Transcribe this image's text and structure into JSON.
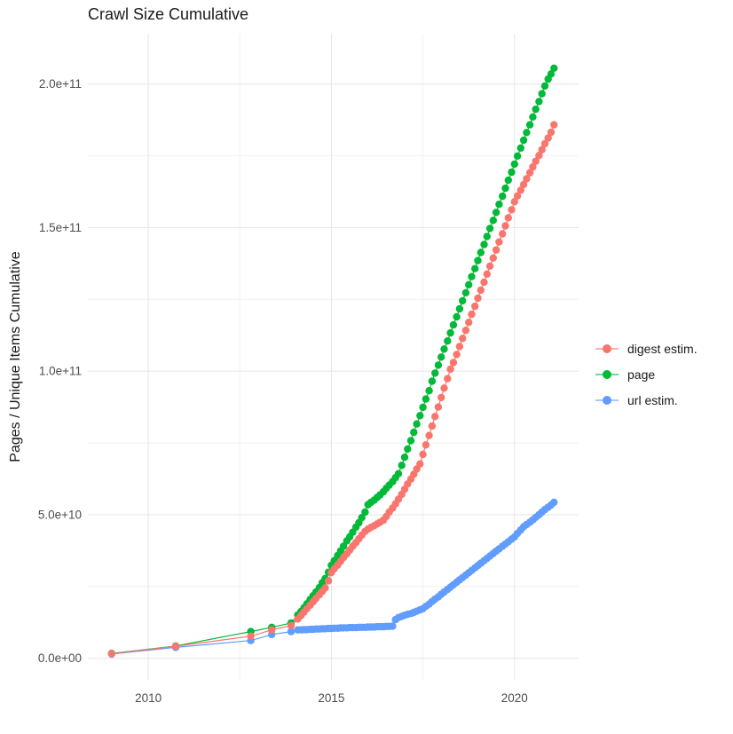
{
  "chart_data": {
    "type": "line",
    "title": "Crawl Size Cumulative",
    "xlabel": "",
    "ylabel": "Pages / Unique Items Cumulative",
    "legend_position": "right",
    "grid": true,
    "value_unit_e9": "values are in billions (1e9)",
    "xlim": [
      2008.35,
      2021.75
    ],
    "ylim_e9": [
      -7.5,
      217.5
    ],
    "x_ticks": [
      {
        "v": 2010,
        "label": "2010"
      },
      {
        "v": 2015,
        "label": "2015"
      },
      {
        "v": 2020,
        "label": "2020"
      }
    ],
    "x_minor_ticks": [
      2012.5,
      2017.5
    ],
    "y_ticks": [
      {
        "v": 0,
        "label": "0.0e+00"
      },
      {
        "v": 50,
        "label": "5.0e+10"
      },
      {
        "v": 100,
        "label": "1.0e+11"
      },
      {
        "v": 150,
        "label": "1.5e+11"
      },
      {
        "v": 200,
        "label": "2.0e+11"
      }
    ],
    "y_minor_ticks": [
      25,
      75,
      125,
      175
    ],
    "colors": {
      "grid_major": "#e4e4e4",
      "grid_minor": "#f1f1f1",
      "tick_text": "#4d4d4d",
      "title_text": "#1a1a1a"
    },
    "draw_order": [
      "url estim.",
      "page",
      "digest estim."
    ],
    "series": [
      {
        "name": "digest estim.",
        "color": "#F8766D",
        "points_e9": [
          [
            2009.0,
            1.6
          ],
          [
            2010.75,
            4.2
          ],
          [
            2012.8,
            7.7
          ],
          [
            2013.37,
            9.9
          ],
          [
            2013.9,
            11.4
          ],
          [
            2014.08,
            13.7
          ],
          [
            2014.17,
            14.9
          ],
          [
            2014.25,
            16.1
          ],
          [
            2014.33,
            17.3
          ],
          [
            2014.42,
            18.5
          ],
          [
            2014.5,
            19.7
          ],
          [
            2014.58,
            20.9
          ],
          [
            2014.67,
            22.1
          ],
          [
            2014.75,
            23.3
          ],
          [
            2014.83,
            24.5
          ],
          [
            2014.92,
            27.0
          ],
          [
            2015.0,
            29.9
          ],
          [
            2015.08,
            31.2
          ],
          [
            2015.17,
            32.5
          ],
          [
            2015.25,
            33.8
          ],
          [
            2015.33,
            35.1
          ],
          [
            2015.42,
            36.4
          ],
          [
            2015.5,
            37.7
          ],
          [
            2015.58,
            39.0
          ],
          [
            2015.67,
            40.3
          ],
          [
            2015.75,
            41.6
          ],
          [
            2015.83,
            42.9
          ],
          [
            2015.92,
            44.2
          ],
          [
            2016.0,
            45.0
          ],
          [
            2016.08,
            45.6
          ],
          [
            2016.17,
            46.2
          ],
          [
            2016.25,
            46.8
          ],
          [
            2016.33,
            47.4
          ],
          [
            2016.42,
            48.1
          ],
          [
            2016.5,
            49.4
          ],
          [
            2016.58,
            50.9
          ],
          [
            2016.67,
            52.3
          ],
          [
            2016.75,
            53.8
          ],
          [
            2016.83,
            55.4
          ],
          [
            2016.92,
            57.1
          ],
          [
            2017.0,
            58.9
          ],
          [
            2017.08,
            60.7
          ],
          [
            2017.17,
            62.4
          ],
          [
            2017.25,
            64.1
          ],
          [
            2017.33,
            65.9
          ],
          [
            2017.42,
            67.7
          ],
          [
            2017.5,
            71.0
          ],
          [
            2017.58,
            74.3
          ],
          [
            2017.67,
            77.6
          ],
          [
            2017.75,
            80.9
          ],
          [
            2017.83,
            84.2
          ],
          [
            2017.92,
            87.5
          ],
          [
            2018.0,
            90.8
          ],
          [
            2018.08,
            94.1
          ],
          [
            2018.17,
            97.4
          ],
          [
            2018.25,
            100.7
          ],
          [
            2018.33,
            103.0
          ],
          [
            2018.42,
            105.8
          ],
          [
            2018.5,
            108.6
          ],
          [
            2018.58,
            111.4
          ],
          [
            2018.67,
            114.2
          ],
          [
            2018.75,
            117.0
          ],
          [
            2018.83,
            119.8
          ],
          [
            2018.92,
            122.6
          ],
          [
            2019.0,
            125.4
          ],
          [
            2019.08,
            128.2
          ],
          [
            2019.17,
            131.0
          ],
          [
            2019.25,
            133.8
          ],
          [
            2019.33,
            136.6
          ],
          [
            2019.42,
            139.4
          ],
          [
            2019.5,
            142.2
          ],
          [
            2019.58,
            145.0
          ],
          [
            2019.67,
            147.8
          ],
          [
            2019.75,
            150.6
          ],
          [
            2019.83,
            153.4
          ],
          [
            2019.92,
            156.2
          ],
          [
            2020.0,
            159.0
          ],
          [
            2020.08,
            161.0
          ],
          [
            2020.17,
            163.0
          ],
          [
            2020.25,
            165.0
          ],
          [
            2020.33,
            167.0
          ],
          [
            2020.42,
            169.1
          ],
          [
            2020.5,
            171.1
          ],
          [
            2020.58,
            173.1
          ],
          [
            2020.67,
            175.1
          ],
          [
            2020.75,
            177.1
          ],
          [
            2020.83,
            179.2
          ],
          [
            2020.92,
            181.2
          ],
          [
            2021.0,
            183.2
          ],
          [
            2021.08,
            185.8
          ]
        ]
      },
      {
        "name": "page",
        "color": "#00BA38",
        "points_e9": [
          [
            2009.0,
            1.7
          ],
          [
            2010.75,
            4.3
          ],
          [
            2012.8,
            9.3
          ],
          [
            2013.37,
            10.8
          ],
          [
            2013.9,
            12.3
          ],
          [
            2014.08,
            15.1
          ],
          [
            2014.17,
            16.3
          ],
          [
            2014.25,
            17.6
          ],
          [
            2014.33,
            19.0
          ],
          [
            2014.42,
            20.5
          ],
          [
            2014.5,
            21.8
          ],
          [
            2014.58,
            23.1
          ],
          [
            2014.67,
            24.6
          ],
          [
            2014.75,
            26.3
          ],
          [
            2014.83,
            27.8
          ],
          [
            2014.92,
            30.0
          ],
          [
            2015.0,
            32.4
          ],
          [
            2015.08,
            34.0
          ],
          [
            2015.17,
            35.8
          ],
          [
            2015.25,
            37.4
          ],
          [
            2015.33,
            39.0
          ],
          [
            2015.42,
            40.9
          ],
          [
            2015.5,
            42.3
          ],
          [
            2015.58,
            43.9
          ],
          [
            2015.67,
            45.7
          ],
          [
            2015.75,
            47.2
          ],
          [
            2015.83,
            49.0
          ],
          [
            2015.92,
            50.9
          ],
          [
            2016.0,
            53.5
          ],
          [
            2016.08,
            54.3
          ],
          [
            2016.17,
            55.1
          ],
          [
            2016.25,
            56.0
          ],
          [
            2016.33,
            56.9
          ],
          [
            2016.42,
            58.0
          ],
          [
            2016.5,
            59.2
          ],
          [
            2016.58,
            60.3
          ],
          [
            2016.67,
            61.5
          ],
          [
            2016.75,
            62.9
          ],
          [
            2016.83,
            64.3
          ],
          [
            2016.92,
            67.2
          ],
          [
            2017.0,
            70.0
          ],
          [
            2017.08,
            72.9
          ],
          [
            2017.17,
            75.8
          ],
          [
            2017.25,
            78.7
          ],
          [
            2017.33,
            81.6
          ],
          [
            2017.42,
            84.5
          ],
          [
            2017.5,
            87.4
          ],
          [
            2017.58,
            90.3
          ],
          [
            2017.67,
            93.2
          ],
          [
            2017.75,
            96.5
          ],
          [
            2017.83,
            99.3
          ],
          [
            2017.92,
            102.1
          ],
          [
            2018.0,
            104.9
          ],
          [
            2018.08,
            107.7
          ],
          [
            2018.17,
            110.5
          ],
          [
            2018.25,
            113.3
          ],
          [
            2018.33,
            116.1
          ],
          [
            2018.42,
            118.9
          ],
          [
            2018.5,
            121.7
          ],
          [
            2018.58,
            124.5
          ],
          [
            2018.67,
            127.3
          ],
          [
            2018.75,
            130.1
          ],
          [
            2018.83,
            132.9
          ],
          [
            2018.92,
            135.7
          ],
          [
            2019.0,
            138.5
          ],
          [
            2019.08,
            141.3
          ],
          [
            2019.17,
            144.1
          ],
          [
            2019.25,
            146.9
          ],
          [
            2019.33,
            149.7
          ],
          [
            2019.42,
            152.5
          ],
          [
            2019.5,
            155.3
          ],
          [
            2019.58,
            158.1
          ],
          [
            2019.67,
            160.9
          ],
          [
            2019.75,
            163.7
          ],
          [
            2019.83,
            166.5
          ],
          [
            2019.92,
            169.3
          ],
          [
            2020.0,
            172.1
          ],
          [
            2020.08,
            174.9
          ],
          [
            2020.17,
            177.7
          ],
          [
            2020.25,
            180.4
          ],
          [
            2020.33,
            183.1
          ],
          [
            2020.42,
            185.8
          ],
          [
            2020.5,
            188.5
          ],
          [
            2020.58,
            191.2
          ],
          [
            2020.67,
            193.9
          ],
          [
            2020.75,
            196.6
          ],
          [
            2020.83,
            199.3
          ],
          [
            2020.92,
            201.7
          ],
          [
            2021.0,
            203.5
          ],
          [
            2021.08,
            205.5
          ]
        ]
      },
      {
        "name": "url estim.",
        "color": "#619CFF",
        "points_e9": [
          [
            2009.0,
            1.5
          ],
          [
            2010.75,
            3.8
          ],
          [
            2012.8,
            6.2
          ],
          [
            2013.37,
            8.3
          ],
          [
            2013.9,
            9.3
          ],
          [
            2014.08,
            9.9
          ],
          [
            2014.17,
            9.9
          ],
          [
            2014.25,
            10.0
          ],
          [
            2014.33,
            10.0
          ],
          [
            2014.42,
            10.1
          ],
          [
            2014.5,
            10.1
          ],
          [
            2014.58,
            10.2
          ],
          [
            2014.67,
            10.2
          ],
          [
            2014.75,
            10.3
          ],
          [
            2014.83,
            10.3
          ],
          [
            2014.92,
            10.4
          ],
          [
            2015.0,
            10.4
          ],
          [
            2015.08,
            10.5
          ],
          [
            2015.17,
            10.5
          ],
          [
            2015.25,
            10.6
          ],
          [
            2015.33,
            10.6
          ],
          [
            2015.42,
            10.6
          ],
          [
            2015.5,
            10.7
          ],
          [
            2015.58,
            10.7
          ],
          [
            2015.67,
            10.7
          ],
          [
            2015.75,
            10.8
          ],
          [
            2015.83,
            10.8
          ],
          [
            2015.92,
            10.8
          ],
          [
            2016.0,
            10.9
          ],
          [
            2016.08,
            10.9
          ],
          [
            2016.17,
            10.9
          ],
          [
            2016.25,
            11.0
          ],
          [
            2016.33,
            11.0
          ],
          [
            2016.42,
            11.0
          ],
          [
            2016.5,
            11.1
          ],
          [
            2016.58,
            11.1
          ],
          [
            2016.67,
            11.2
          ],
          [
            2016.75,
            13.5
          ],
          [
            2016.83,
            14.2
          ],
          [
            2016.92,
            14.6
          ],
          [
            2017.0,
            15.0
          ],
          [
            2017.08,
            15.3
          ],
          [
            2017.17,
            15.6
          ],
          [
            2017.25,
            16.0
          ],
          [
            2017.33,
            16.4
          ],
          [
            2017.42,
            16.9
          ],
          [
            2017.5,
            17.3
          ],
          [
            2017.58,
            18.1
          ],
          [
            2017.67,
            18.9
          ],
          [
            2017.75,
            19.8
          ],
          [
            2017.83,
            20.6
          ],
          [
            2017.92,
            21.4
          ],
          [
            2018.0,
            22.3
          ],
          [
            2018.08,
            23.1
          ],
          [
            2018.17,
            24.0
          ],
          [
            2018.25,
            24.8
          ],
          [
            2018.33,
            25.6
          ],
          [
            2018.42,
            26.5
          ],
          [
            2018.5,
            27.3
          ],
          [
            2018.58,
            28.1
          ],
          [
            2018.67,
            29.0
          ],
          [
            2018.75,
            29.8
          ],
          [
            2018.83,
            30.6
          ],
          [
            2018.92,
            31.5
          ],
          [
            2019.0,
            32.3
          ],
          [
            2019.08,
            33.1
          ],
          [
            2019.17,
            34.0
          ],
          [
            2019.25,
            34.8
          ],
          [
            2019.33,
            35.6
          ],
          [
            2019.42,
            36.5
          ],
          [
            2019.5,
            37.3
          ],
          [
            2019.58,
            38.1
          ],
          [
            2019.67,
            39.0
          ],
          [
            2019.75,
            39.8
          ],
          [
            2019.83,
            40.6
          ],
          [
            2019.92,
            41.5
          ],
          [
            2020.0,
            42.3
          ],
          [
            2020.08,
            43.5
          ],
          [
            2020.17,
            44.7
          ],
          [
            2020.25,
            45.8
          ],
          [
            2020.33,
            46.6
          ],
          [
            2020.42,
            47.4
          ],
          [
            2020.5,
            48.2
          ],
          [
            2020.58,
            49.1
          ],
          [
            2020.67,
            50.0
          ],
          [
            2020.75,
            50.9
          ],
          [
            2020.83,
            51.8
          ],
          [
            2020.92,
            52.6
          ],
          [
            2021.0,
            53.4
          ],
          [
            2021.08,
            54.3
          ]
        ]
      }
    ]
  }
}
